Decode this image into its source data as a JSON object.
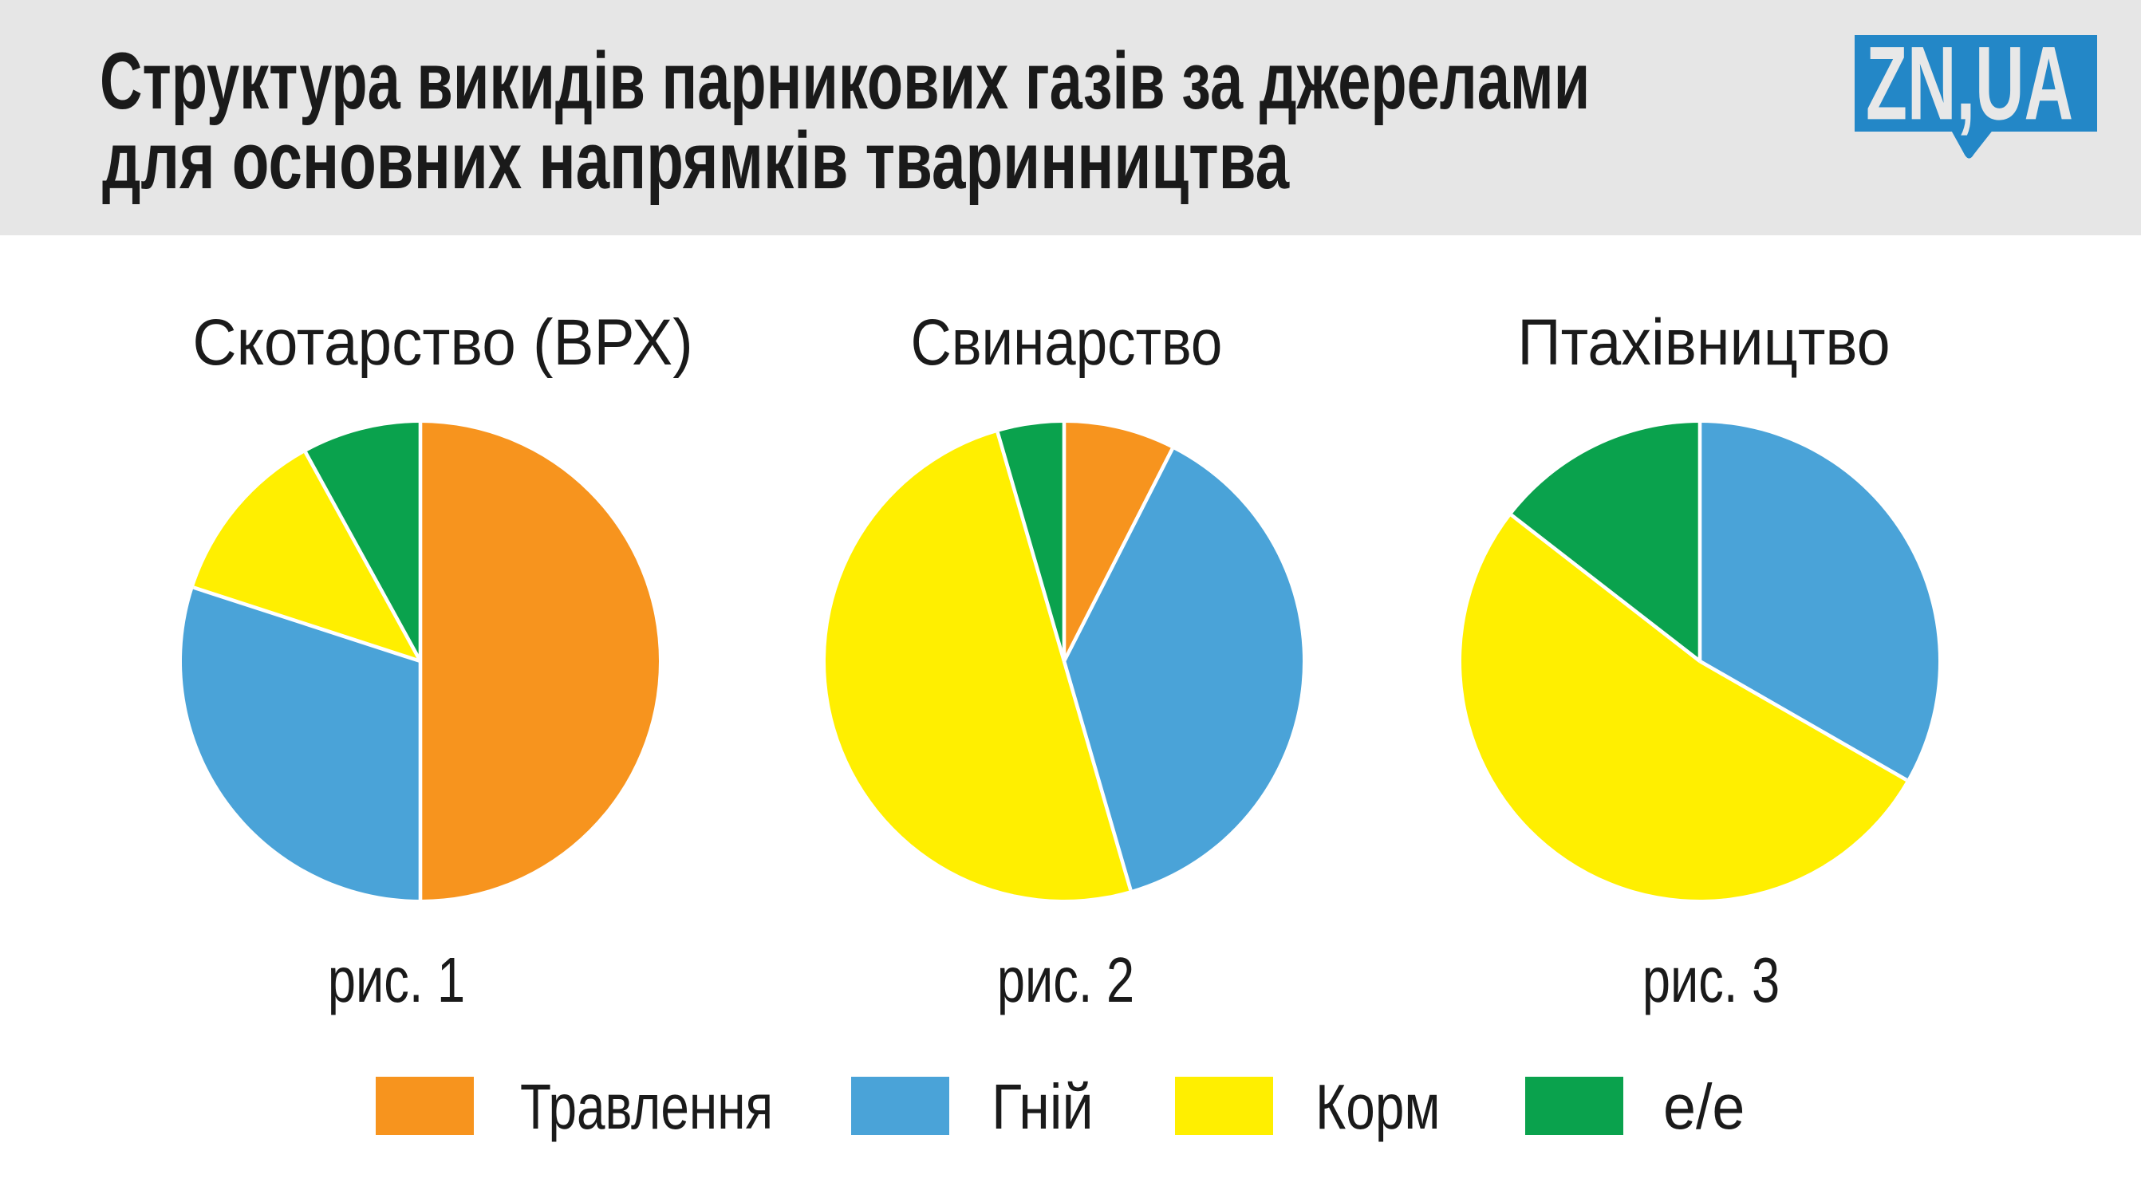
{
  "header": {
    "title_line_1": "Структура викидів парникових газів за джерелами",
    "title_line_2": "для основних напрямків тваринництва",
    "background_color": "#e6e6e6",
    "text_color": "#1a1a1a"
  },
  "logo": {
    "text": "ZN,UA",
    "background_color": "#2387c7",
    "text_color": "#e8e8e8"
  },
  "legend": {
    "items": [
      {
        "label": "Травлення",
        "color": "#f7941e"
      },
      {
        "label": "Гній",
        "color": "#4aa3d8"
      },
      {
        "label": "Корм",
        "color": "#ffef00"
      },
      {
        "label": "е/е",
        "color": "#0aa24d"
      }
    ]
  },
  "chart_data": [
    {
      "type": "pie",
      "title": "Скотарство (ВРХ)",
      "caption": "рис. 1",
      "categories": [
        "Травлення",
        "Гній",
        "Корм",
        "е/е"
      ],
      "values": [
        50,
        30,
        12,
        8
      ],
      "colors": [
        "#f7941e",
        "#4aa3d8",
        "#ffef00",
        "#0aa24d"
      ],
      "start_angle_deg": 0,
      "direction": "clockwise"
    },
    {
      "type": "pie",
      "title": "Свинарство",
      "caption": "рис. 2",
      "categories": [
        "Травлення",
        "Гній",
        "Корм",
        "е/е"
      ],
      "values": [
        7.5,
        38,
        50,
        4.5
      ],
      "colors": [
        "#f7941e",
        "#4aa3d8",
        "#ffef00",
        "#0aa24d"
      ],
      "start_angle_deg": 0,
      "direction": "clockwise"
    },
    {
      "type": "pie",
      "title": "Птахівництво",
      "caption": "рис. 3",
      "categories": [
        "Травлення",
        "Гній",
        "Корм",
        "е/е"
      ],
      "values": [
        0,
        33.3,
        52.2,
        14.5
      ],
      "colors": [
        "#f7941e",
        "#4aa3d8",
        "#ffef00",
        "#0aa24d"
      ],
      "start_angle_deg": 0,
      "direction": "clockwise"
    }
  ]
}
